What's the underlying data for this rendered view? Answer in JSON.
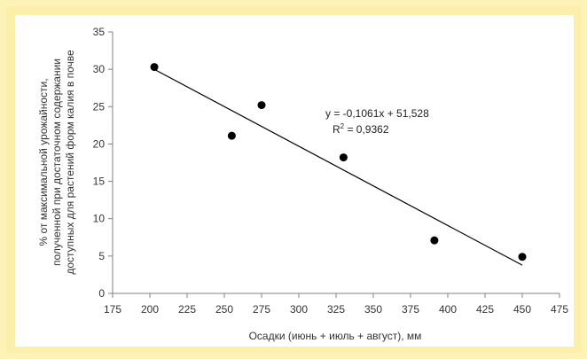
{
  "chart_data": {
    "type": "scatter",
    "title": "",
    "xlabel": "Осадки (июнь + июль + август), мм",
    "ylabel_lines": [
      "% от максимальной урожайности,",
      "полученной при достаточном содержании",
      "доступных для растений форм калия в почве"
    ],
    "xlim": [
      175,
      475
    ],
    "ylim": [
      0,
      35
    ],
    "x_ticks": [
      "175",
      "200",
      "225",
      "250",
      "275",
      "300",
      "325",
      "350",
      "375",
      "400",
      "425",
      "450",
      "475"
    ],
    "y_ticks": [
      "0",
      "5",
      "10",
      "15",
      "20",
      "25",
      "30",
      "35"
    ],
    "grid": false,
    "legend": "none",
    "series": [
      {
        "points": [
          {
            "x": 203,
            "y": 30.3
          },
          {
            "x": 255,
            "y": 21.1
          },
          {
            "x": 275,
            "y": 25.2
          },
          {
            "x": 330,
            "y": 18.2
          },
          {
            "x": 391,
            "y": 7.1
          },
          {
            "x": 450,
            "y": 4.9
          }
        ],
        "color": "#000000"
      }
    ],
    "trendline": {
      "type": "linear",
      "slope": -0.1061,
      "intercept": 51.528,
      "x_range": [
        203,
        450
      ],
      "equation": "y = -0,1061x + 51,528",
      "r_squared_prefix": "R",
      "r_squared_exponent": "2",
      "r_squared_value": " = 0,9362"
    },
    "colors": {
      "frame": "#fbefaa",
      "axis": "#808080",
      "marker": "#000000",
      "trend": "#000000"
    }
  }
}
